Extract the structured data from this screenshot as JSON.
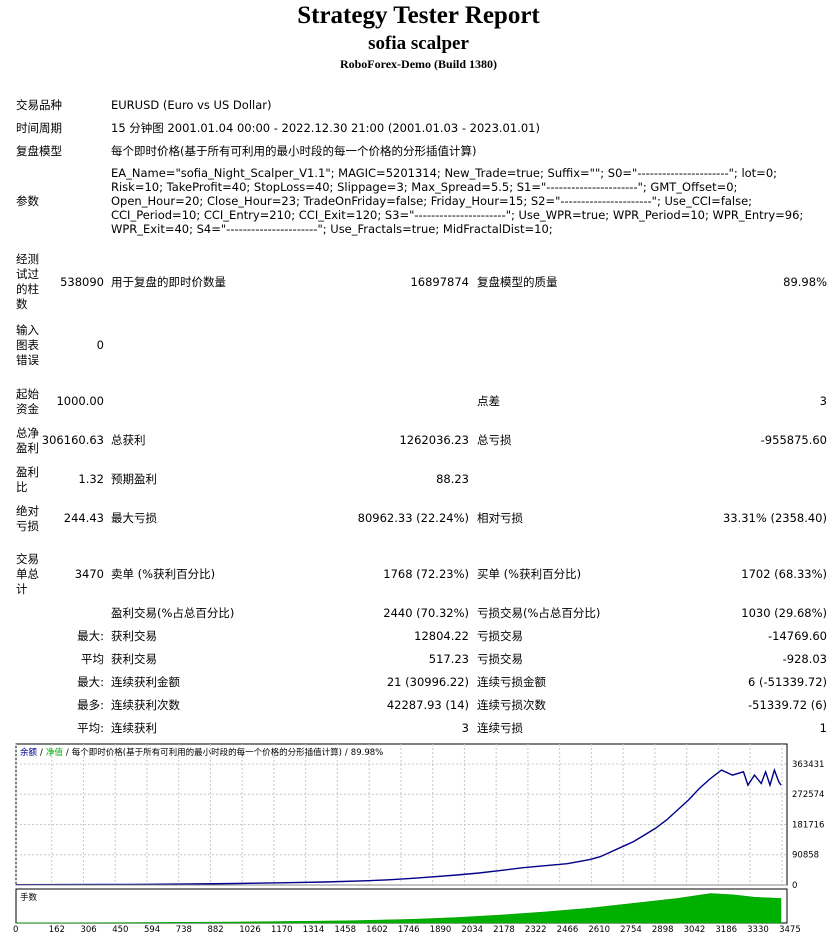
{
  "header": {
    "title": "Strategy Tester Report",
    "ea_name": "sofia scalper",
    "server": "RoboForex-Demo (Build 1380)"
  },
  "info": {
    "symbol_label": "交易品种",
    "symbol_value": "EURUSD (Euro vs US Dollar)",
    "period_label": "时间周期",
    "period_value": "15 分钟图 2001.01.04 00:00 - 2022.12.30 21:00 (2001.01.03 - 2023.01.01)",
    "model_label": "复盘模型",
    "model_value": "每个即时价格(基于所有可利用的最小时段的每一个价格的分形插值计算)",
    "params_label": "参数",
    "params_value": "EA_Name=\"sofia_Night_Scalper_V1.1\"; MAGIC=5201314; New_Trade=true; Suffix=\"\"; S0=\"----------------------\"; lot=0; Risk=10; TakeProfit=40; StopLoss=40; Slippage=3; Max_Spread=5.5; S1=\"----------------------\"; GMT_Offset=0; Open_Hour=20; Close_Hour=23; TradeOnFriday=false; Friday_Hour=15; S2=\"----------------------\"; Use_CCI=false; CCI_Period=10; CCI_Entry=210; CCI_Exit=120; S3=\"----------------------\"; Use_WPR=true; WPR_Period=10; WPR_Entry=96; WPR_Exit=40; S4=\"----------------------\"; Use_Fractals=true; MidFractalDist=10;"
  },
  "stats": {
    "bars_label": "经测试过的柱数",
    "bars_value": "538090",
    "ticks_label": "用于复盘的即时价数量",
    "ticks_value": "16897874",
    "quality_label": "复盘模型的质量",
    "quality_value": "89.98%",
    "errors_label": "输入图表错误",
    "errors_value": "0",
    "deposit_label": "起始资金",
    "deposit_value": "1000.00",
    "spread_label": "点差",
    "spread_value": "3",
    "net_label": "总净盈利",
    "net_value": "306160.63",
    "gross_profit_label": "总获利",
    "gross_profit_value": "1262036.23",
    "gross_loss_label": "总亏损",
    "gross_loss_value": "-955875.60",
    "pf_label": "盈利比",
    "pf_value": "1.32",
    "expected_label": "预期盈利",
    "expected_value": "88.23",
    "abs_dd_label": "绝对亏损",
    "abs_dd_value": "244.43",
    "max_dd_label": "最大亏损",
    "max_dd_value": "80962.33 (22.24%)",
    "rel_dd_label": "相对亏损",
    "rel_dd_value": "33.31% (2358.40)",
    "trades_label": "交易单总计",
    "trades_value": "3470",
    "short_label": "卖单 (%获利百分比)",
    "short_value": "1768 (72.23%)",
    "long_label": "买单 (%获利百分比)",
    "long_value": "1702 (68.33%)",
    "win_label": "盈利交易(%占总百分比)",
    "win_value": "2440 (70.32%)",
    "loss_label": "亏损交易(%占总百分比)",
    "loss_value": "1030 (29.68%)",
    "max_prefix": "最大:",
    "avg_prefix": "平均",
    "largest_win_label": "获利交易",
    "largest_win_value": "12804.22",
    "largest_loss_label": "亏损交易",
    "largest_loss_value": "-14769.60",
    "avg_win_label": "获利交易",
    "avg_win_value": "517.23",
    "avg_loss_label": "亏损交易",
    "avg_loss_value": "-928.03",
    "max2_prefix": "最大:",
    "cons_win_amt_label": "连续获利金额",
    "cons_win_amt_value": "21 (30996.22)",
    "cons_loss_amt_label": "连续亏损金额",
    "cons_loss_amt_value": "6 (-51339.72)",
    "most_prefix": "最多:",
    "cons_win_cnt_label": "连续获利次数",
    "cons_win_cnt_value": "42287.93 (14)",
    "cons_loss_cnt_label": "连续亏损次数",
    "cons_loss_cnt_value": "-51339.72 (6)",
    "avg2_prefix": "平均:",
    "avg_cons_win_label": "连续获利",
    "avg_cons_win_value": "3",
    "avg_cons_loss_label": "连续亏损",
    "avg_cons_loss_value": "1"
  },
  "chart_data": {
    "type": "line",
    "legend": {
      "balance": "余额",
      "sep1": "/",
      "equity": "净值",
      "sep2": "/",
      "model": "每个即时价格(基于所有可利用的最小时段的每一个价格的分形插值计算)",
      "sep3": "/",
      "quality": "89.98%"
    },
    "y_ticks": [
      0,
      90858,
      181716,
      272574,
      363431
    ],
    "ylim": [
      0,
      363431
    ],
    "x_ticks": [
      0,
      162,
      306,
      450,
      594,
      738,
      882,
      1026,
      1170,
      1314,
      1458,
      1602,
      1746,
      1890,
      2034,
      2178,
      2322,
      2466,
      2610,
      2754,
      2898,
      3042,
      3186,
      3330,
      3475
    ],
    "xlim": [
      0,
      3470
    ],
    "lot_panel_label": "手数",
    "balance_color": "#00008b",
    "lot_color": "#00b000",
    "series": [
      {
        "x": [
          0,
          200,
          400,
          600,
          800,
          1000,
          1200,
          1400,
          1600,
          1700,
          1800,
          1900,
          2000,
          2100,
          2200,
          2300,
          2400,
          2500,
          2550,
          2600,
          2650,
          2700,
          2750,
          2800,
          2850,
          2900,
          2950,
          3000,
          3050,
          3100,
          3150,
          3200,
          3250,
          3300,
          3320,
          3350,
          3380,
          3400,
          3420,
          3440,
          3460,
          3470
        ],
        "y": [
          1000,
          1200,
          1600,
          2200,
          3000,
          4500,
          6500,
          9000,
          13000,
          16000,
          20000,
          25000,
          30000,
          36000,
          44000,
          52000,
          58000,
          64000,
          70000,
          76000,
          85000,
          100000,
          115000,
          130000,
          150000,
          170000,
          195000,
          225000,
          255000,
          290000,
          320000,
          345000,
          330000,
          340000,
          300000,
          330000,
          305000,
          340000,
          300000,
          345000,
          310000,
          300000
        ]
      }
    ],
    "lot_x": [
      0,
      500,
      1000,
      1500,
      1800,
      2000,
      2200,
      2400,
      2600,
      2800,
      3000,
      3150,
      3250,
      3350,
      3470
    ],
    "lot_y": [
      0.1,
      0.3,
      0.8,
      1.8,
      3,
      4.5,
      6.5,
      9,
      12,
      16,
      20,
      24,
      23,
      21,
      20
    ],
    "lot_ylim": [
      0,
      26
    ]
  }
}
